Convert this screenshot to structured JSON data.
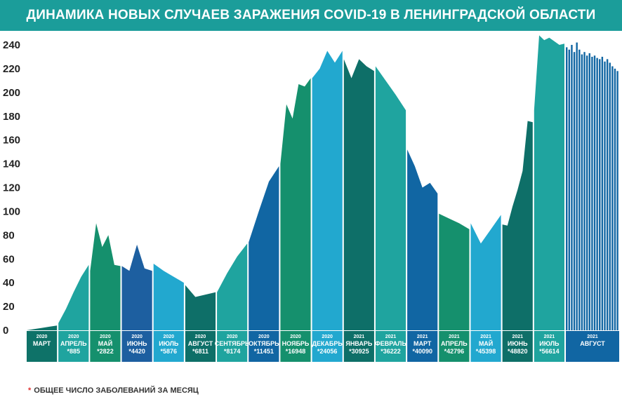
{
  "chart_data": {
    "type": "area",
    "title": "ДИНАМИКА НОВЫХ СЛУЧАЕВ ЗАРАЖЕНИЯ COVID-19 В ЛЕНИНГРАДСКОЙ ОБЛАСТИ",
    "ylim": [
      0,
      250
    ],
    "yticks": [
      0,
      20,
      40,
      60,
      80,
      100,
      120,
      140,
      160,
      180,
      200,
      220,
      240
    ],
    "footnote_star": "*",
    "footnote": "ОБЩЕЕ ЧИСЛО ЗАБОЛЕВАНИЙ ЗА МЕСЯЦ",
    "months": [
      {
        "year": "2020",
        "name": "МАРТ",
        "total": "",
        "color": "#0e7268",
        "values": [
          0,
          1,
          2,
          3,
          4
        ]
      },
      {
        "year": "2020",
        "name": "АПРЕЛЬ",
        "total": "*885",
        "color": "#1fa49f",
        "values": [
          6,
          18,
          32,
          45,
          55
        ]
      },
      {
        "year": "2020",
        "name": "МАЙ",
        "total": "*2822",
        "color": "#15906d",
        "values": [
          50,
          90,
          70,
          80,
          55,
          54
        ]
      },
      {
        "year": "2020",
        "name": "ИЮНЬ",
        "total": "*4420",
        "color": "#1d5fa0",
        "values": [
          54,
          50,
          72,
          52,
          50
        ]
      },
      {
        "year": "2020",
        "name": "ИЮЛЬ",
        "total": "*5876",
        "color": "#22a8cf",
        "values": [
          56,
          50,
          45,
          40
        ]
      },
      {
        "year": "2020",
        "name": "АВГУСТ",
        "total": "*6811",
        "color": "#0e6f68",
        "values": [
          38,
          28,
          30,
          32
        ]
      },
      {
        "year": "2020",
        "name": "СЕНТЯБРЬ",
        "total": "*8174",
        "color": "#1fa49f",
        "values": [
          32,
          48,
          62,
          73
        ]
      },
      {
        "year": "2020",
        "name": "ОКТЯБРЬ",
        "total": "*11451",
        "color": "#1166a3",
        "values": [
          74,
          100,
          125,
          138
        ]
      },
      {
        "year": "2020",
        "name": "НОЯБРЬ",
        "total": "*16948",
        "color": "#15906d",
        "values": [
          140,
          190,
          178,
          207,
          205,
          212
        ]
      },
      {
        "year": "2020",
        "name": "ДЕКАБРЬ",
        "total": "*24056",
        "color": "#22a8cf",
        "values": [
          212,
          220,
          235,
          225,
          235
        ]
      },
      {
        "year": "2021",
        "name": "ЯНВАРЬ",
        "total": "*30925",
        "color": "#0e6f68",
        "values": [
          228,
          212,
          228,
          222,
          218
        ]
      },
      {
        "year": "2021",
        "name": "ФЕВРАЛЬ",
        "total": "*36222",
        "color": "#1fa49f",
        "values": [
          222,
          210,
          198,
          185
        ]
      },
      {
        "year": "2021",
        "name": "МАРТ",
        "total": "*40090",
        "color": "#1166a3",
        "values": [
          152,
          138,
          120,
          124,
          115
        ]
      },
      {
        "year": "2021",
        "name": "АПРЕЛЬ",
        "total": "*42796",
        "color": "#15906d",
        "values": [
          98,
          94,
          90,
          85
        ]
      },
      {
        "year": "2021",
        "name": "МАЙ",
        "total": "*45398",
        "color": "#22a8cf",
        "values": [
          90,
          73,
          85,
          97
        ]
      },
      {
        "year": "2021",
        "name": "ИЮНЬ",
        "total": "*48820",
        "color": "#0e6f68",
        "values": [
          89,
          88,
          104,
          118,
          134,
          176,
          175
        ]
      },
      {
        "year": "2021",
        "name": "ИЮЛЬ",
        "total": "*56614",
        "color": "#1fa49f",
        "values": [
          185,
          248,
          244,
          246,
          243,
          240,
          241
        ]
      },
      {
        "year": "2021",
        "name": "АВГУСТ",
        "total": "",
        "color": "#1166a3",
        "values": [
          238,
          236,
          240,
          234,
          242,
          236,
          232,
          234,
          231,
          233,
          230,
          231,
          229,
          228,
          230,
          226,
          228,
          225,
          222,
          220,
          218
        ]
      }
    ]
  }
}
